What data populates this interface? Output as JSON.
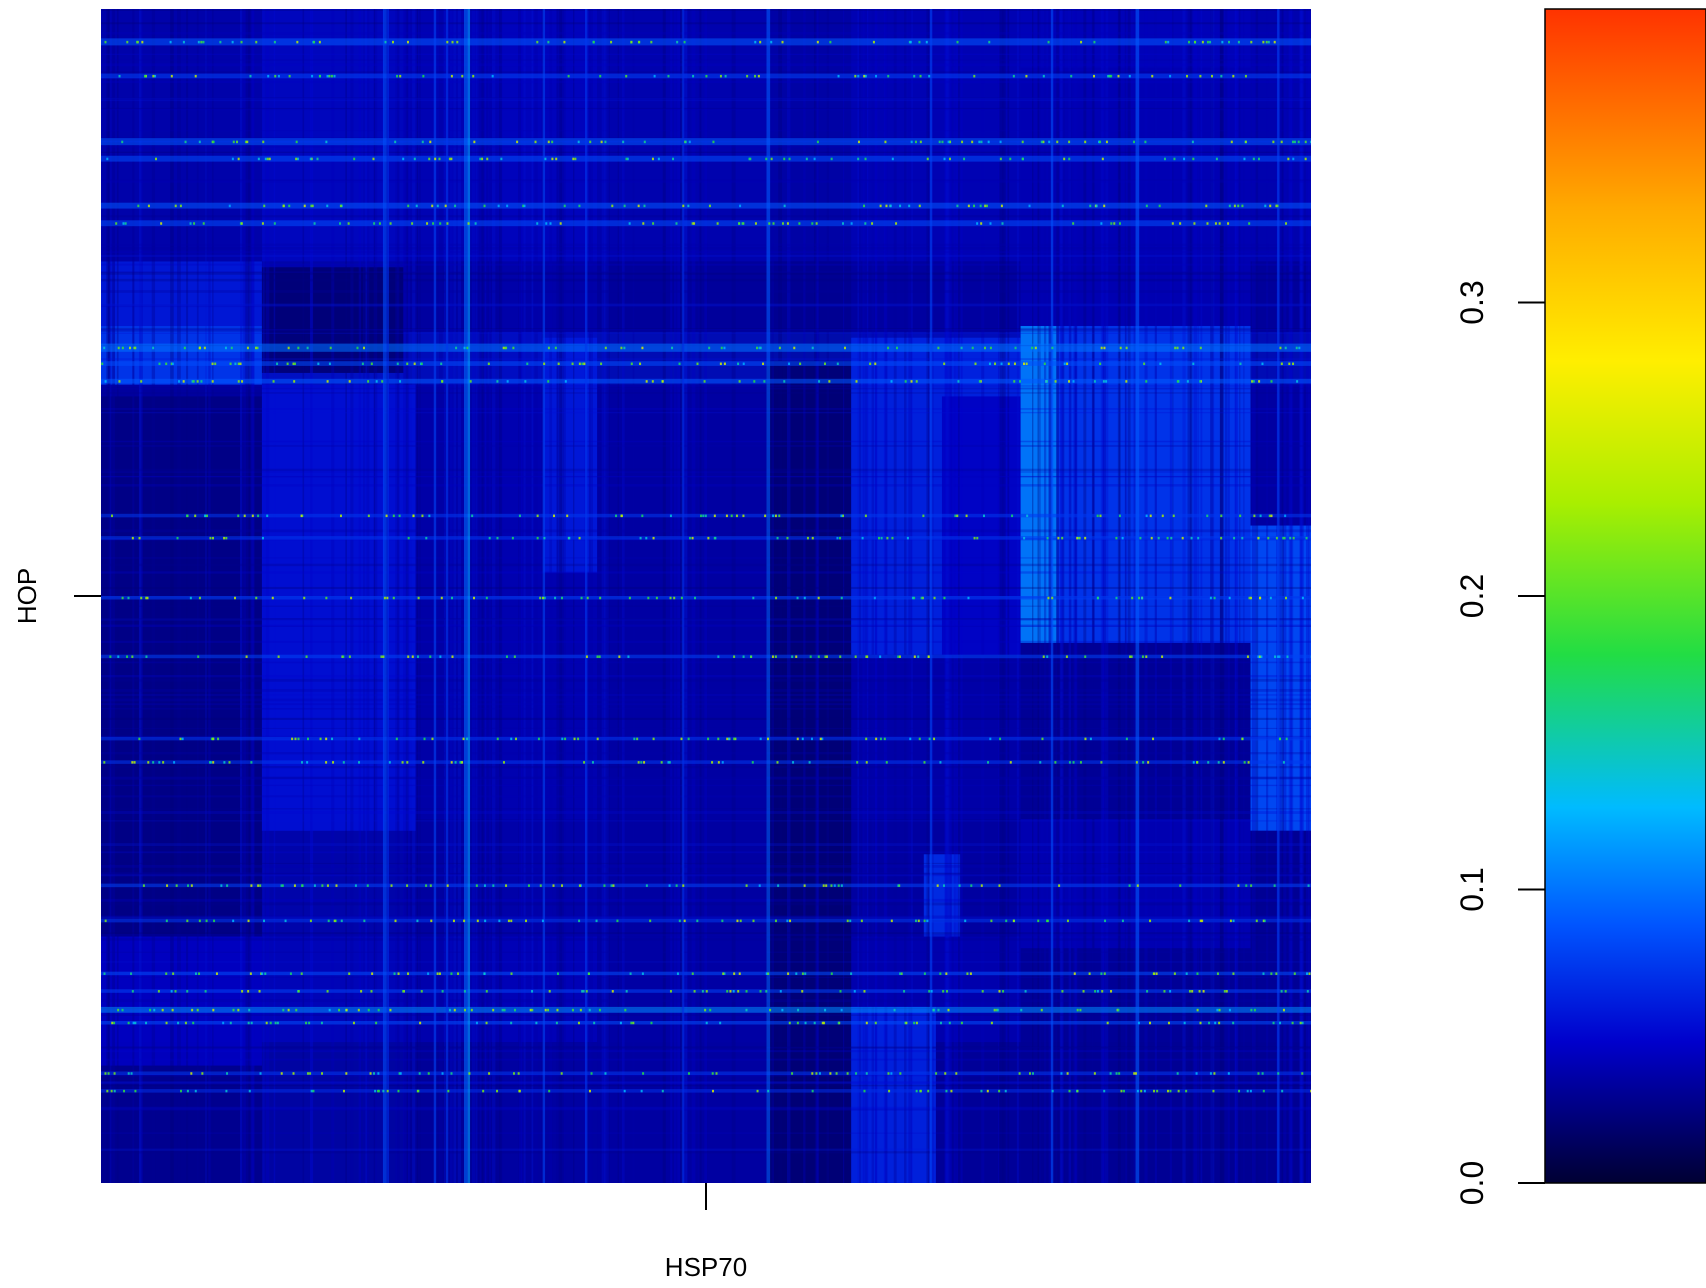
{
  "chart_data": {
    "type": "heatmap",
    "title": "",
    "xlabel": "HSP70",
    "ylabel": "HOP",
    "x_ticks": [
      ""
    ],
    "y_ticks": [
      ""
    ],
    "colorbar": {
      "range": [
        0.0,
        0.4
      ],
      "ticks": [
        {
          "value": 0.0,
          "label": "0.0"
        },
        {
          "value": 0.1,
          "label": "0.1"
        },
        {
          "value": 0.2,
          "label": "0.2"
        },
        {
          "value": 0.3,
          "label": "0.3"
        }
      ],
      "colormap": [
        "#000033",
        "#0000cc",
        "#0055ff",
        "#00bbff",
        "#22dd44",
        "#aaee00",
        "#ffee00",
        "#ffaa00",
        "#ff3300"
      ],
      "colormap_positions": [
        0.0,
        0.12,
        0.22,
        0.32,
        0.45,
        0.58,
        0.7,
        0.83,
        1.0
      ]
    },
    "grid": false,
    "background_value": 0.025,
    "column_blocks": [
      {
        "x0": 0.0,
        "x1": 0.133,
        "value": 0.03
      },
      {
        "x0": 0.133,
        "x1": 0.25,
        "value": 0.055
      },
      {
        "x0": 0.25,
        "x1": 0.33,
        "value": 0.04
      },
      {
        "x0": 0.33,
        "x1": 0.41,
        "value": 0.05
      },
      {
        "x0": 0.41,
        "x1": 0.55,
        "value": 0.035
      },
      {
        "x0": 0.55,
        "x1": 0.62,
        "value": 0.025
      },
      {
        "x0": 0.62,
        "x1": 0.76,
        "value": 0.04
      },
      {
        "x0": 0.76,
        "x1": 0.95,
        "value": 0.045
      },
      {
        "x0": 0.95,
        "x1": 1.0,
        "value": 0.035
      }
    ],
    "row_blocks": [
      {
        "y0": 0.0,
        "y1": 0.215,
        "value": 0.05
      },
      {
        "y0": 0.215,
        "y1": 0.275,
        "value": 0.035
      },
      {
        "y0": 0.275,
        "y1": 0.32,
        "value": 0.06
      },
      {
        "y0": 0.32,
        "y1": 0.69,
        "value": 0.04
      },
      {
        "y0": 0.69,
        "y1": 0.79,
        "value": 0.035
      },
      {
        "y0": 0.79,
        "y1": 0.88,
        "value": 0.045
      },
      {
        "y0": 0.88,
        "y1": 1.0,
        "value": 0.03
      }
    ],
    "rect_blocks": [
      {
        "x0": 0.0,
        "x1": 0.133,
        "y0": 0.215,
        "y1": 0.27,
        "value": 0.06
      },
      {
        "x0": 0.0,
        "x1": 0.133,
        "y0": 0.27,
        "y1": 0.32,
        "value": 0.075
      },
      {
        "x0": 0.133,
        "x1": 0.25,
        "y0": 0.22,
        "y1": 0.31,
        "value": 0.02
      },
      {
        "x0": 0.0,
        "x1": 0.133,
        "y0": 0.33,
        "y1": 0.79,
        "value": 0.025
      },
      {
        "x0": 0.133,
        "x1": 0.26,
        "y0": 0.32,
        "y1": 0.7,
        "value": 0.055
      },
      {
        "x0": 0.365,
        "x1": 0.41,
        "y0": 0.28,
        "y1": 0.48,
        "value": 0.06
      },
      {
        "x0": 0.55,
        "x1": 0.55,
        "y0": 0.0,
        "y1": 0.0,
        "value": 0.0
      },
      {
        "x0": 0.555,
        "x1": 0.555,
        "y0": 0.0,
        "y1": 0.0,
        "value": 0.0
      },
      {
        "x0": 0.41,
        "x1": 0.55,
        "y0": 0.5,
        "y1": 1.0,
        "value": 0.035
      },
      {
        "x0": 0.55,
        "x1": 0.62,
        "y0": 0.3,
        "y1": 1.0,
        "value": 0.02
      },
      {
        "x0": 0.62,
        "x1": 0.76,
        "y0": 0.28,
        "y1": 0.55,
        "value": 0.065
      },
      {
        "x0": 0.695,
        "x1": 0.76,
        "y0": 0.33,
        "y1": 0.55,
        "value": 0.045
      },
      {
        "x0": 0.62,
        "x1": 0.69,
        "y0": 0.85,
        "y1": 1.0,
        "value": 0.065
      },
      {
        "x0": 0.76,
        "x1": 0.95,
        "y0": 0.05,
        "y1": 0.5,
        "value": 0.04
      },
      {
        "x0": 0.76,
        "x1": 0.95,
        "y0": 0.8,
        "y1": 1.0,
        "value": 0.03
      },
      {
        "x0": 0.76,
        "x1": 0.79,
        "y0": 0.27,
        "y1": 0.54,
        "value": 0.105
      },
      {
        "x0": 0.79,
        "x1": 0.95,
        "y0": 0.27,
        "y1": 0.54,
        "value": 0.075
      },
      {
        "x0": 0.76,
        "x1": 0.95,
        "y0": 0.54,
        "y1": 0.69,
        "value": 0.03
      },
      {
        "x0": 0.76,
        "x1": 0.95,
        "y0": 0.69,
        "y1": 0.79,
        "value": 0.04
      },
      {
        "x0": 0.95,
        "x1": 1.0,
        "y0": 0.44,
        "y1": 0.7,
        "value": 0.085
      },
      {
        "x0": 0.95,
        "x1": 1.0,
        "y0": 0.7,
        "y1": 1.0,
        "value": 0.03
      },
      {
        "x0": 0.68,
        "x1": 0.71,
        "y0": 0.72,
        "y1": 0.79,
        "value": 0.07
      },
      {
        "x0": 0.0,
        "x1": 0.133,
        "y0": 0.79,
        "y1": 0.9,
        "value": 0.045
      }
    ],
    "row_bands": [
      {
        "y": 0.025,
        "h": 0.006,
        "value": 0.09
      },
      {
        "y": 0.055,
        "h": 0.004,
        "value": 0.08
      },
      {
        "y": 0.11,
        "h": 0.006,
        "value": 0.09
      },
      {
        "y": 0.125,
        "h": 0.005,
        "value": 0.085
      },
      {
        "y": 0.165,
        "h": 0.005,
        "value": 0.09
      },
      {
        "y": 0.18,
        "h": 0.005,
        "value": 0.085
      },
      {
        "y": 0.285,
        "h": 0.007,
        "value": 0.1
      },
      {
        "y": 0.3,
        "h": 0.004,
        "value": 0.085
      },
      {
        "y": 0.315,
        "h": 0.004,
        "value": 0.09
      },
      {
        "y": 0.43,
        "h": 0.003,
        "value": 0.075
      },
      {
        "y": 0.449,
        "h": 0.003,
        "value": 0.075
      },
      {
        "y": 0.5,
        "h": 0.003,
        "value": 0.08
      },
      {
        "y": 0.55,
        "h": 0.003,
        "value": 0.08
      },
      {
        "y": 0.62,
        "h": 0.003,
        "value": 0.075
      },
      {
        "y": 0.64,
        "h": 0.003,
        "value": 0.075
      },
      {
        "y": 0.745,
        "h": 0.003,
        "value": 0.08
      },
      {
        "y": 0.775,
        "h": 0.003,
        "value": 0.075
      },
      {
        "y": 0.82,
        "h": 0.003,
        "value": 0.085
      },
      {
        "y": 0.835,
        "h": 0.003,
        "value": 0.08
      },
      {
        "y": 0.85,
        "h": 0.005,
        "value": 0.11
      },
      {
        "y": 0.862,
        "h": 0.003,
        "value": 0.085
      },
      {
        "y": 0.905,
        "h": 0.003,
        "value": 0.075
      },
      {
        "y": 0.92,
        "h": 0.003,
        "value": 0.07
      }
    ],
    "col_bands": [
      {
        "x": 0.233,
        "w": 0.003,
        "value": 0.085
      },
      {
        "x": 0.236,
        "w": 0.002,
        "value": 0.07
      },
      {
        "x": 0.275,
        "w": 0.002,
        "value": 0.08
      },
      {
        "x": 0.285,
        "w": 0.002,
        "value": 0.075
      },
      {
        "x": 0.3,
        "w": 0.003,
        "value": 0.095
      },
      {
        "x": 0.303,
        "w": 0.002,
        "value": 0.12
      },
      {
        "x": 0.365,
        "w": 0.002,
        "value": 0.08
      },
      {
        "x": 0.4,
        "w": 0.002,
        "value": 0.075
      },
      {
        "x": 0.48,
        "w": 0.002,
        "value": 0.07
      },
      {
        "x": 0.55,
        "w": 0.003,
        "value": 0.09
      },
      {
        "x": 0.685,
        "w": 0.002,
        "value": 0.08
      },
      {
        "x": 0.785,
        "w": 0.002,
        "value": 0.085
      },
      {
        "x": 0.855,
        "w": 0.003,
        "value": 0.09
      },
      {
        "x": 0.972,
        "w": 0.002,
        "value": 0.08
      }
    ]
  }
}
